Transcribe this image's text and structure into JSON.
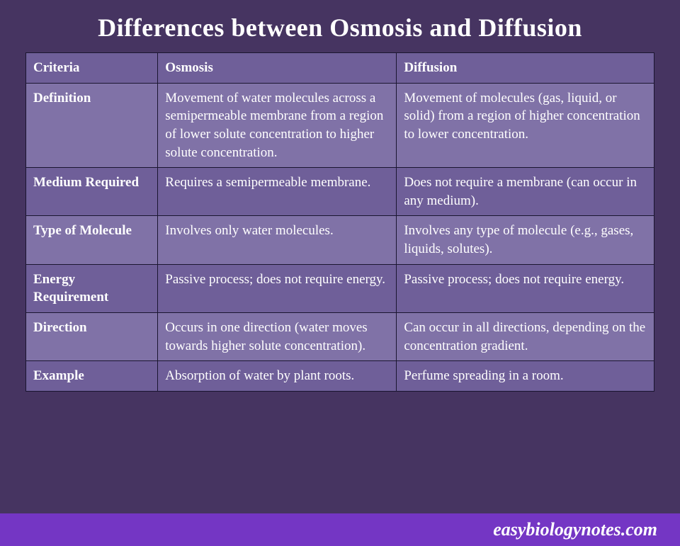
{
  "title": "Differences between Osmosis and Diffusion",
  "footer": "easybiologynotes.com",
  "colors": {
    "page_bg": "#463461",
    "header_bg": "#6f5f99",
    "row_odd_bg": "#8072a7",
    "row_even_bg": "#6f5f99",
    "border": "#1a1530",
    "footer_bg": "#7436c4",
    "text": "#ffffff"
  },
  "typography": {
    "title_fontsize": 36,
    "cell_fontsize": 19,
    "footer_fontsize": 26,
    "font_family": "Georgia, serif"
  },
  "table": {
    "column_widths_pct": [
      21,
      38,
      41
    ],
    "headers": [
      "Criteria",
      "Osmosis",
      "Diffusion"
    ],
    "rows": [
      {
        "criteria": "Definition",
        "osmosis": "Movement of water molecules across a semipermeable membrane from a region of lower solute concentration to higher solute concentration.",
        "diffusion": "Movement of molecules (gas, liquid, or solid) from a region of higher concentration to lower concentration."
      },
      {
        "criteria": "Medium Required",
        "osmosis": "Requires a semipermeable membrane.",
        "diffusion": "Does not require a membrane (can occur in any medium)."
      },
      {
        "criteria": "Type of Molecule",
        "osmosis": "Involves only water molecules.",
        "diffusion": "Involves any type of molecule (e.g., gases, liquids, solutes)."
      },
      {
        "criteria": "Energy Requirement",
        "osmosis": "Passive process; does not require energy.",
        "diffusion": "Passive process; does not require energy."
      },
      {
        "criteria": "Direction",
        "osmosis": "Occurs in one direction (water moves towards higher solute concentration).",
        "diffusion": "Can occur in all directions, depending on the concentration gradient."
      },
      {
        "criteria": "Example",
        "osmosis": "Absorption of water by plant roots.",
        "diffusion": "Perfume spreading in a room."
      }
    ]
  }
}
